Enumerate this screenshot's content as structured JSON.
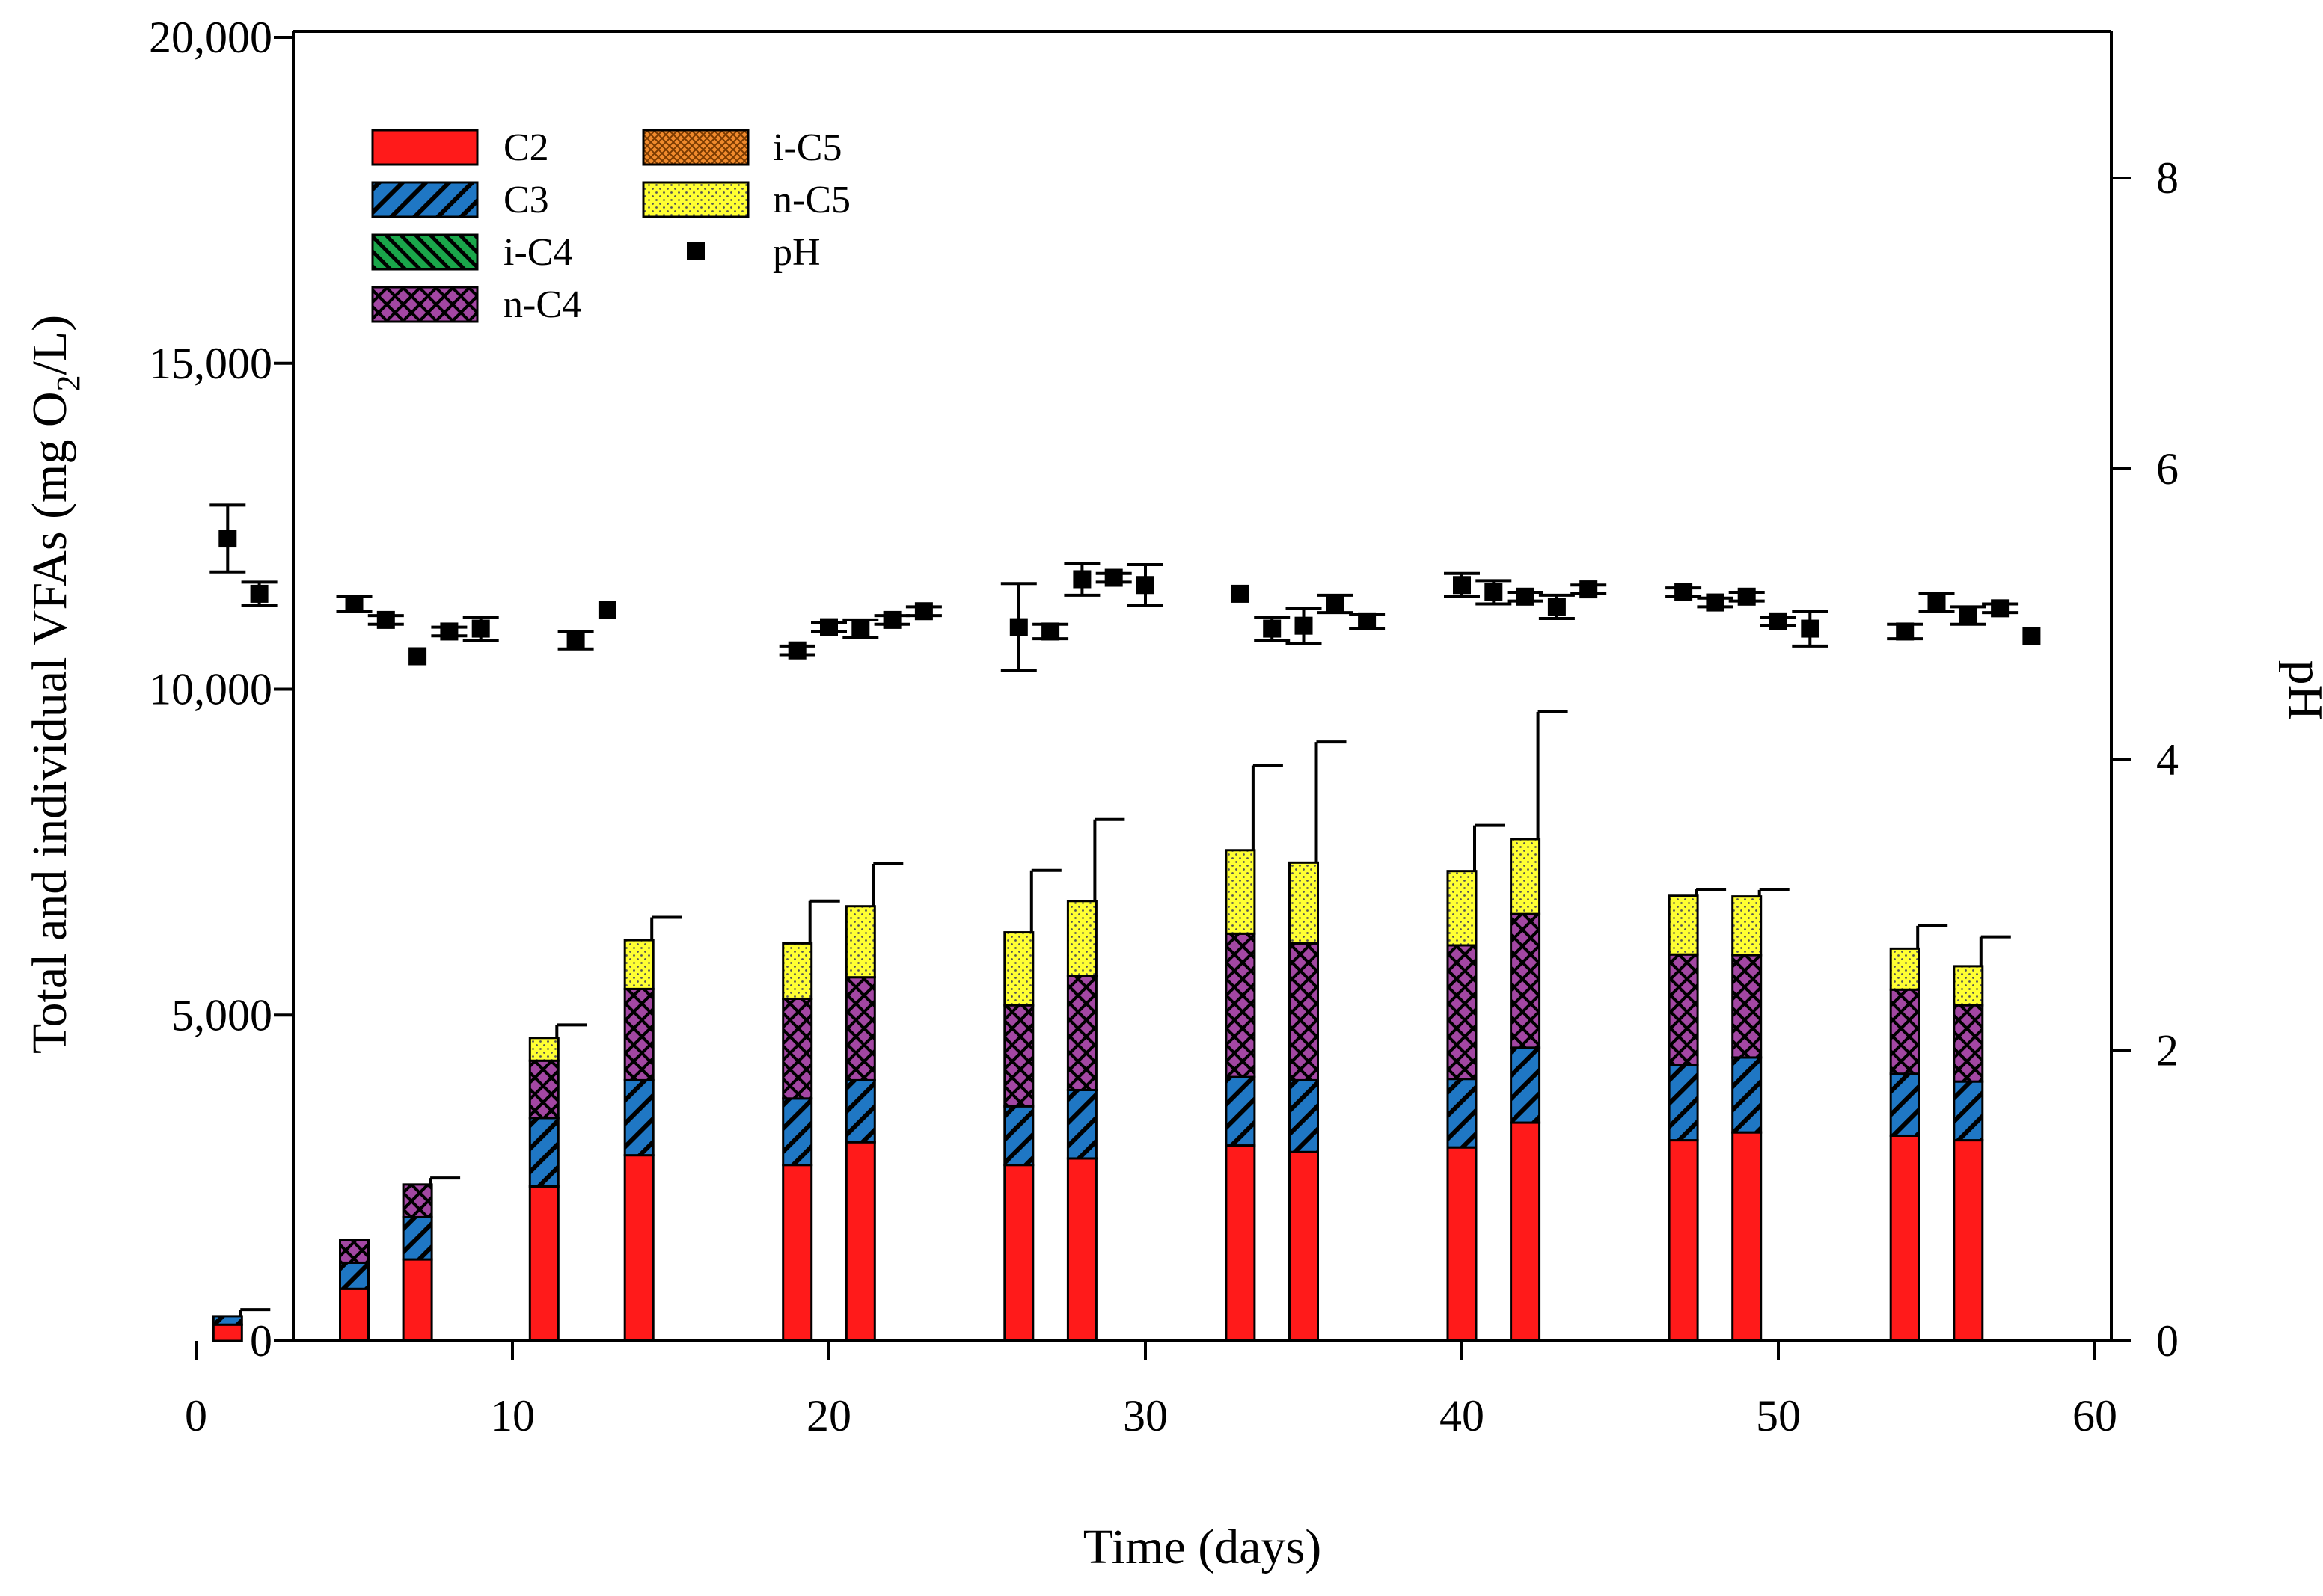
{
  "chart_data": {
    "type": "bar",
    "subtype": "stacked-bar-with-scatter-secondary-axis",
    "xlabel": "Time (days)",
    "ylabel_parts": [
      "Total and individual VFAs (mg O",
      "2",
      "/L)"
    ],
    "y2label": "pH",
    "xlim": [
      -3.5,
      61
    ],
    "ylim": [
      0,
      20000
    ],
    "y2lim": [
      0,
      9.0
    ],
    "xticks": [
      0,
      10,
      20,
      30,
      40,
      50,
      60
    ],
    "yticks": [
      0,
      5000,
      10000,
      15000,
      20000
    ],
    "ytick_labels": [
      "0",
      "5,000",
      "10,000",
      "15,000",
      "20,000"
    ],
    "y2ticks": [
      0,
      2,
      4,
      6,
      8
    ],
    "y2tick_labels": [
      "0",
      "2",
      "4",
      "6",
      "8"
    ],
    "legend_position": "top-left",
    "grid": false,
    "series": [
      {
        "name": "C2",
        "color": "#ff1a1a",
        "pattern": "solid"
      },
      {
        "name": "C3",
        "color": "#1f77c4",
        "pattern": "diagonal"
      },
      {
        "name": "i-C4",
        "color": "#1aa64a",
        "pattern": "diagonal-dense"
      },
      {
        "name": "n-C4",
        "color": "#a347a3",
        "pattern": "crosshatch"
      },
      {
        "name": "i-C5",
        "color": "#f08a2c",
        "pattern": "crosshatch-fine"
      },
      {
        "name": "n-C5",
        "color": "#ffff33",
        "pattern": "dots"
      }
    ],
    "ph_series": {
      "name": "pH",
      "color": "#000000",
      "marker": "square"
    },
    "bars": [
      {
        "x": 1,
        "C2": 250,
        "C3": 130,
        "i-C4": 0,
        "n-C4": 0,
        "i-C5": 0,
        "n-C5": 0,
        "total": 380,
        "error": 100
      },
      {
        "x": 5,
        "C2": 800,
        "C3": 400,
        "i-C4": 0,
        "n-C4": 350,
        "i-C5": 0,
        "n-C5": 0,
        "total": 1550,
        "error": 0
      },
      {
        "x": 7,
        "C2": 1250,
        "C3": 650,
        "i-C4": 0,
        "n-C4": 500,
        "i-C5": 0,
        "n-C5": 0,
        "total": 2400,
        "error": 100
      },
      {
        "x": 11,
        "C2": 2370,
        "C3": 1050,
        "i-C4": 0,
        "n-C4": 880,
        "i-C5": 0,
        "n-C5": 350,
        "total": 4650,
        "error": 200
      },
      {
        "x": 14,
        "C2": 2850,
        "C3": 1150,
        "i-C4": 0,
        "n-C4": 1400,
        "i-C5": 0,
        "n-C5": 750,
        "total": 6150,
        "error": 350
      },
      {
        "x": 19,
        "C2": 2700,
        "C3": 1020,
        "i-C4": 0,
        "n-C4": 1530,
        "i-C5": 0,
        "n-C5": 850,
        "total": 6100,
        "error": 650
      },
      {
        "x": 21,
        "C2": 3050,
        "C3": 950,
        "i-C4": 0,
        "n-C4": 1580,
        "i-C5": 0,
        "n-C5": 1090,
        "total": 6670,
        "error": 650
      },
      {
        "x": 26,
        "C2": 2700,
        "C3": 900,
        "i-C4": 0,
        "n-C4": 1550,
        "i-C5": 0,
        "n-C5": 1120,
        "total": 6270,
        "error": 950
      },
      {
        "x": 28,
        "C2": 2800,
        "C3": 1050,
        "i-C4": 0,
        "n-C4": 1750,
        "i-C5": 0,
        "n-C5": 1150,
        "total": 6750,
        "error": 1250
      },
      {
        "x": 33,
        "C2": 3000,
        "C3": 1050,
        "i-C4": 0,
        "n-C4": 2200,
        "i-C5": 0,
        "n-C5": 1280,
        "total": 7530,
        "error": 1300
      },
      {
        "x": 35,
        "C2": 2900,
        "C3": 1100,
        "i-C4": 0,
        "n-C4": 2100,
        "i-C5": 0,
        "n-C5": 1240,
        "total": 7340,
        "error": 1850
      },
      {
        "x": 40,
        "C2": 2970,
        "C3": 1050,
        "i-C4": 0,
        "n-C4": 2050,
        "i-C5": 0,
        "n-C5": 1140,
        "total": 7210,
        "error": 700
      },
      {
        "x": 42,
        "C2": 3350,
        "C3": 1150,
        "i-C4": 0,
        "n-C4": 2050,
        "i-C5": 0,
        "n-C5": 1150,
        "total": 7700,
        "error": 1950
      },
      {
        "x": 47,
        "C2": 3080,
        "C3": 1150,
        "i-C4": 0,
        "n-C4": 1700,
        "i-C5": 0,
        "n-C5": 900,
        "total": 6830,
        "error": 100
      },
      {
        "x": 49,
        "C2": 3200,
        "C3": 1150,
        "i-C4": 0,
        "n-C4": 1570,
        "i-C5": 0,
        "n-C5": 900,
        "total": 6820,
        "error": 100
      },
      {
        "x": 54,
        "C2": 3150,
        "C3": 950,
        "i-C4": 0,
        "n-C4": 1290,
        "i-C5": 0,
        "n-C5": 630,
        "total": 6020,
        "error": 350
      },
      {
        "x": 56,
        "C2": 3080,
        "C3": 900,
        "i-C4": 0,
        "n-C4": 1170,
        "i-C5": 0,
        "n-C5": 600,
        "total": 5750,
        "error": 450
      }
    ],
    "ph_points": [
      {
        "x": 1,
        "y": 5.52,
        "err": 0.23
      },
      {
        "x": 2,
        "y": 5.14,
        "err": 0.08
      },
      {
        "x": 5,
        "y": 5.07,
        "err": 0.05
      },
      {
        "x": 6,
        "y": 4.96,
        "err": 0.03
      },
      {
        "x": 7,
        "y": 4.71,
        "err": 0.0
      },
      {
        "x": 8,
        "y": 4.88,
        "err": 0.03
      },
      {
        "x": 9,
        "y": 4.9,
        "err": 0.08
      },
      {
        "x": 12,
        "y": 4.82,
        "err": 0.06
      },
      {
        "x": 13,
        "y": 5.03,
        "err": 0.0
      },
      {
        "x": 19,
        "y": 4.75,
        "err": 0.03
      },
      {
        "x": 20,
        "y": 4.91,
        "err": 0.03
      },
      {
        "x": 21,
        "y": 4.9,
        "err": 0.06
      },
      {
        "x": 22,
        "y": 4.96,
        "err": 0.03
      },
      {
        "x": 23,
        "y": 5.02,
        "err": 0.03
      },
      {
        "x": 26,
        "y": 4.91,
        "err": 0.3
      },
      {
        "x": 27,
        "y": 4.88,
        "err": 0.05
      },
      {
        "x": 28,
        "y": 5.24,
        "err": 0.11
      },
      {
        "x": 29,
        "y": 5.25,
        "err": 0.03
      },
      {
        "x": 30,
        "y": 5.2,
        "err": 0.14
      },
      {
        "x": 33,
        "y": 5.14,
        "err": 0.0
      },
      {
        "x": 34,
        "y": 4.9,
        "err": 0.08
      },
      {
        "x": 35,
        "y": 4.92,
        "err": 0.12
      },
      {
        "x": 36,
        "y": 5.07,
        "err": 0.06
      },
      {
        "x": 37,
        "y": 4.95,
        "err": 0.05
      },
      {
        "x": 40,
        "y": 5.2,
        "err": 0.08
      },
      {
        "x": 41,
        "y": 5.15,
        "err": 0.08
      },
      {
        "x": 42,
        "y": 5.12,
        "err": 0.03
      },
      {
        "x": 43,
        "y": 5.05,
        "err": 0.08
      },
      {
        "x": 44,
        "y": 5.17,
        "err": 0.03
      },
      {
        "x": 47,
        "y": 5.15,
        "err": 0.03
      },
      {
        "x": 48,
        "y": 5.08,
        "err": 0.03
      },
      {
        "x": 49,
        "y": 5.12,
        "err": 0.03
      },
      {
        "x": 50,
        "y": 4.95,
        "err": 0.03
      },
      {
        "x": 51,
        "y": 4.9,
        "err": 0.12
      },
      {
        "x": 54,
        "y": 4.88,
        "err": 0.05
      },
      {
        "x": 55,
        "y": 5.08,
        "err": 0.06
      },
      {
        "x": 56,
        "y": 4.99,
        "err": 0.06
      },
      {
        "x": 57,
        "y": 5.04,
        "err": 0.03
      },
      {
        "x": 58,
        "y": 4.85,
        "err": 0.0
      }
    ]
  }
}
